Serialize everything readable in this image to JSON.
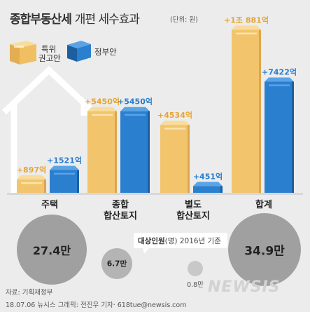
{
  "header": {
    "title_main": "종합부동산세",
    "title_sub": "개편 세수효과",
    "unit": "(단위: 원)"
  },
  "legend": {
    "tf_label_line1": "특위",
    "tf_label_line2": "권고안",
    "gov_label": "정부안",
    "tf_color": "#f2c46b",
    "gov_color": "#2b7fcf"
  },
  "chart_data": {
    "type": "bar",
    "title": "종합부동산세 개편 세수효과",
    "unit": "(단위: 원)",
    "categories": [
      "주택",
      "종합\n합산토지",
      "별도\n합산토지",
      "합계"
    ],
    "series": [
      {
        "name": "특위 권고안",
        "values": [
          897,
          5450,
          4534,
          10881
        ],
        "labels": [
          "+897억",
          "+5450억",
          "+4534억",
          "+1조 881억"
        ]
      },
      {
        "name": "정부안",
        "values": [
          1521,
          5450,
          451,
          7422
        ],
        "labels": [
          "+1521억",
          "+5450억",
          "+451억",
          "+7422억"
        ]
      }
    ],
    "ylabel": "",
    "xlabel": "",
    "ylim": [
      0,
      11000
    ],
    "grid": false
  },
  "targets": {
    "caption_bold": "대상인원",
    "caption_rest": "(명) 2016년 기준",
    "bubbles": [
      {
        "category": "주택",
        "value": "27.4만"
      },
      {
        "category": "종합 합산토지",
        "value": "6.7만"
      },
      {
        "category": "별도 합산토지",
        "value": "0.8만"
      },
      {
        "category": "합계",
        "value": "34.9만"
      }
    ]
  },
  "footer": {
    "source": "자료: 기획재정부",
    "credit": "18.07.06 뉴시스 그래픽: 전진우 기자· 618tue@newsis.com",
    "logo": "NEWSIS"
  }
}
